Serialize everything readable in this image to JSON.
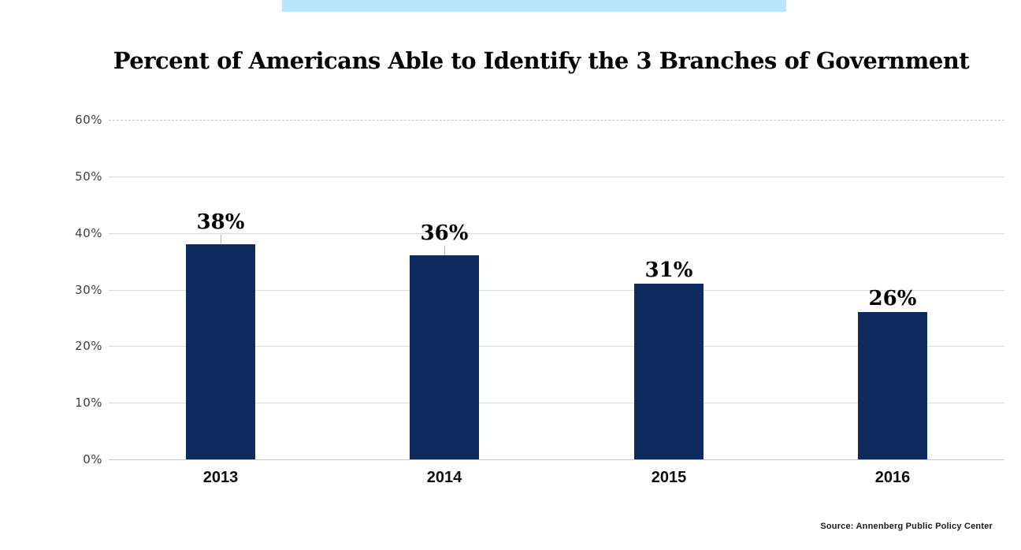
{
  "banner": {
    "color": "#b9e6fa"
  },
  "chart_data": {
    "type": "bar",
    "title": "Percent of Americans Able to Identify the 3 Branches of Government",
    "categories": [
      "2013",
      "2014",
      "2015",
      "2016"
    ],
    "values": [
      38,
      36,
      31,
      26
    ],
    "data_labels": [
      "38%",
      "36%",
      "31%",
      "26%"
    ],
    "leader_lines": [
      true,
      true,
      false,
      false
    ],
    "y_ticks": [
      "60%",
      "50%",
      "40%",
      "30%",
      "20%",
      "10%",
      "0%"
    ],
    "ylim": [
      0,
      60
    ],
    "xlabel": "",
    "ylabel": "",
    "grid": true,
    "legend": false,
    "bar_color": "#0e2a5e",
    "source": "Source: Annenberg Public Policy Center"
  }
}
